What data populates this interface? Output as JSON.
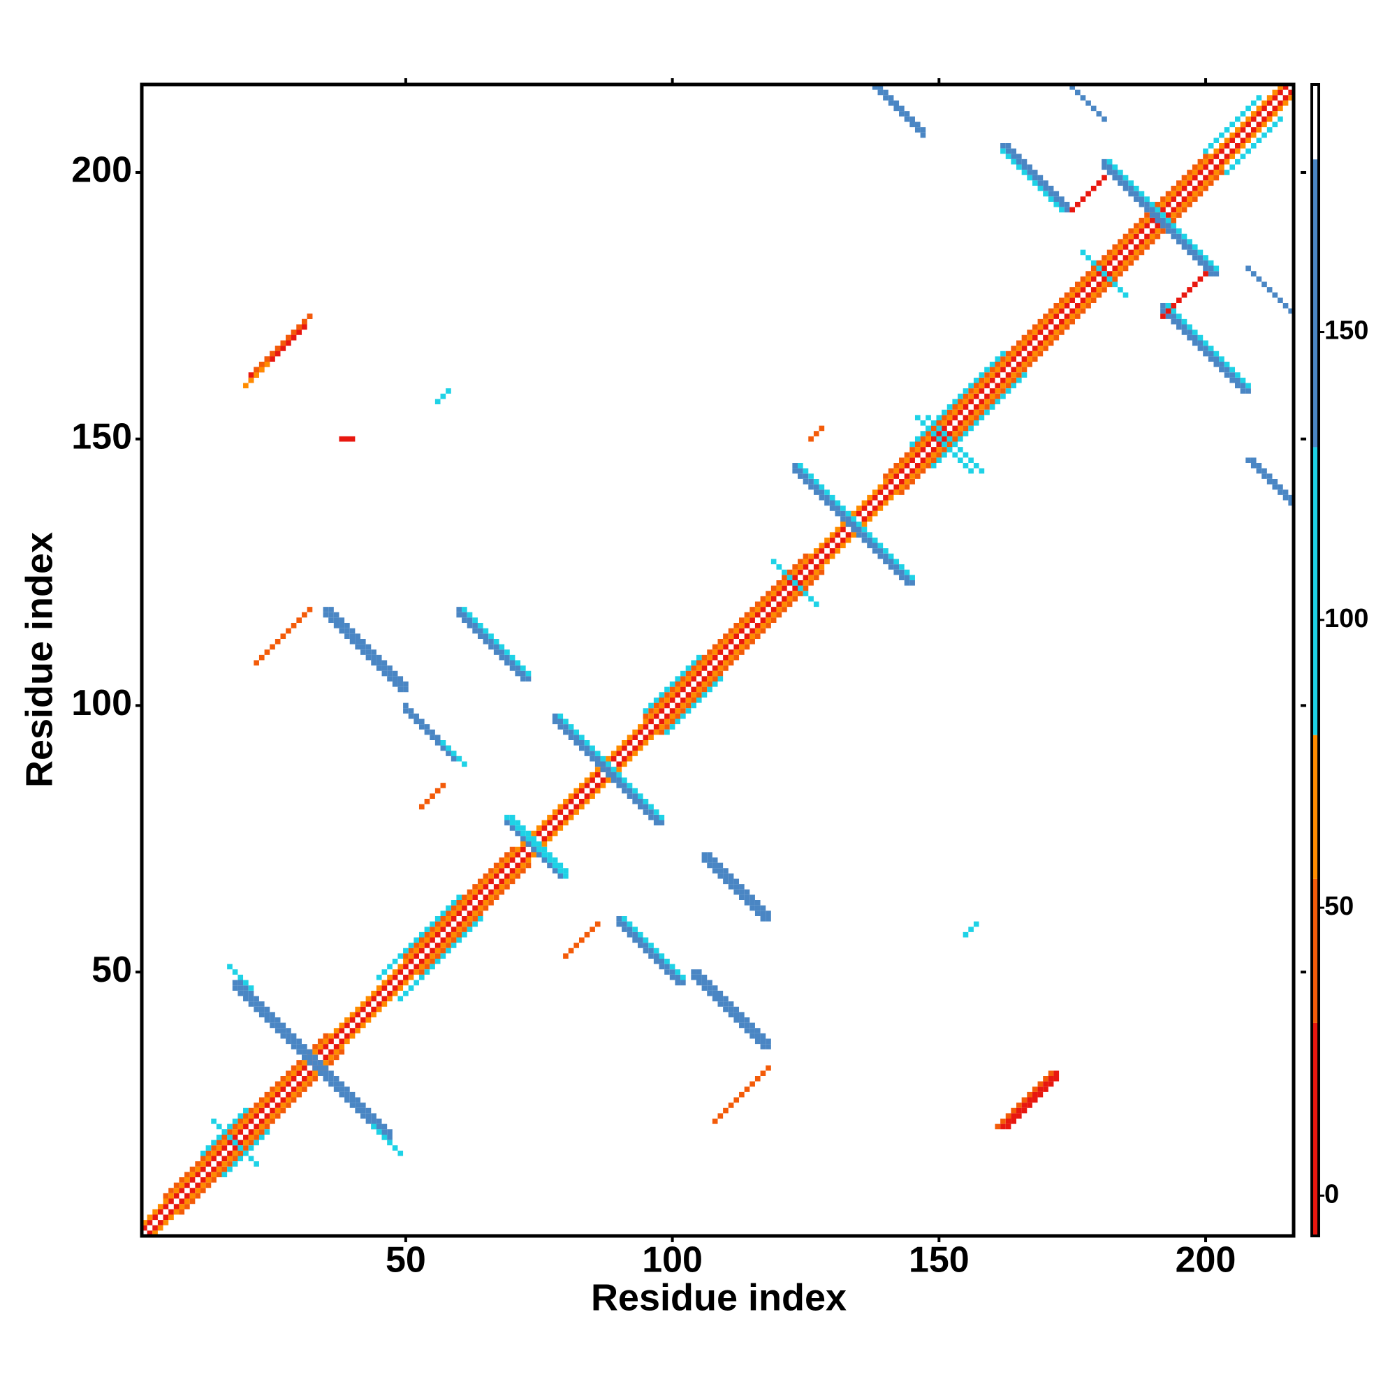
{
  "chart_data": {
    "type": "heatmap",
    "xlabel": "Residue index",
    "ylabel": "Residue index",
    "xlim": [
      0.5,
      216.5
    ],
    "ylim": [
      0.5,
      216.5
    ],
    "xticks": [
      50,
      100,
      150,
      200
    ],
    "yticks": [
      50,
      100,
      150,
      200
    ],
    "colorbar": {
      "lim": [
        -7,
        193
      ],
      "ticks": [
        0,
        50,
        100,
        150
      ],
      "bands": [
        {
          "from": -7,
          "to": 30,
          "color": "#e8170f"
        },
        {
          "from": 30,
          "to": 55,
          "color": "#f35b09"
        },
        {
          "from": 55,
          "to": 80,
          "color": "#ff8c00"
        },
        {
          "from": 80,
          "to": 130,
          "color": "#1ed2e6"
        },
        {
          "from": 130,
          "to": 180,
          "color": "#4a86c4"
        },
        {
          "from": 180,
          "to": 193,
          "color": "#ffffff"
        }
      ]
    },
    "segments": [
      {
        "x": [
          1,
          215
        ],
        "y": [
          2,
          216
        ],
        "value": 10
      },
      {
        "x": [
          2,
          216
        ],
        "y": [
          1,
          215
        ],
        "value": 10
      },
      {
        "x": [
          1,
          214
        ],
        "y": [
          3,
          216
        ],
        "value": 65
      },
      {
        "x": [
          3,
          216
        ],
        "y": [
          1,
          214
        ],
        "value": 65
      },
      {
        "x": [
          5,
          35
        ],
        "y": [
          8,
          38
        ],
        "value": 40
      },
      {
        "x": [
          8,
          38
        ],
        "y": [
          5,
          35
        ],
        "value": 40
      },
      {
        "x": [
          50,
          70
        ],
        "y": [
          53,
          73
        ],
        "value": 40
      },
      {
        "x": [
          53,
          73
        ],
        "y": [
          50,
          70
        ],
        "value": 40
      },
      {
        "x": [
          95,
          125
        ],
        "y": [
          98,
          128
        ],
        "value": 40
      },
      {
        "x": [
          98,
          128
        ],
        "y": [
          95,
          125
        ],
        "value": 40
      },
      {
        "x": [
          140,
          200
        ],
        "y": [
          143,
          203
        ],
        "value": 40
      },
      {
        "x": [
          143,
          203
        ],
        "y": [
          140,
          200
        ],
        "value": 40
      },
      {
        "x": [
          12,
          20
        ],
        "y": [
          16,
          24
        ],
        "value": 100
      },
      {
        "x": [
          16,
          24
        ],
        "y": [
          12,
          20
        ],
        "value": 100
      },
      {
        "x": [
          45,
          60
        ],
        "y": [
          49,
          64
        ],
        "value": 100
      },
      {
        "x": [
          49,
          64
        ],
        "y": [
          45,
          60
        ],
        "value": 100
      },
      {
        "x": [
          95,
          105
        ],
        "y": [
          99,
          109
        ],
        "value": 100
      },
      {
        "x": [
          99,
          109
        ],
        "y": [
          95,
          105
        ],
        "value": 100
      },
      {
        "x": [
          145,
          162
        ],
        "y": [
          149,
          166
        ],
        "value": 100
      },
      {
        "x": [
          149,
          166
        ],
        "y": [
          145,
          162
        ],
        "value": 100
      },
      {
        "x": [
          200,
          210
        ],
        "y": [
          204,
          214
        ],
        "value": 100
      },
      {
        "x": [
          204,
          214
        ],
        "y": [
          200,
          210
        ],
        "value": 100
      },
      {
        "x": [
          18,
          47
        ],
        "y": [
          48,
          19
        ],
        "value": 160
      },
      {
        "x": [
          18,
          46
        ],
        "y": [
          47,
          19
        ],
        "value": 160
      },
      {
        "x": [
          19,
          47
        ],
        "y": [
          48,
          20
        ],
        "value": 160
      },
      {
        "x": [
          17,
          21
        ],
        "y": [
          51,
          47
        ],
        "value": 100
      },
      {
        "x": [
          44,
          49
        ],
        "y": [
          21,
          16
        ],
        "value": 100
      },
      {
        "x": [
          35,
          50
        ],
        "y": [
          118,
          103
        ],
        "value": 160
      },
      {
        "x": [
          35,
          49
        ],
        "y": [
          117,
          103
        ],
        "value": 160
      },
      {
        "x": [
          36,
          50
        ],
        "y": [
          118,
          104
        ],
        "value": 160
      },
      {
        "x": [
          50,
          60
        ],
        "y": [
          100,
          90
        ],
        "value": 160
      },
      {
        "x": [
          50,
          59
        ],
        "y": [
          99,
          90
        ],
        "value": 160
      },
      {
        "x": [
          57,
          61
        ],
        "y": [
          93,
          89
        ],
        "value": 100
      },
      {
        "x": [
          60,
          73
        ],
        "y": [
          118,
          105
        ],
        "value": 160
      },
      {
        "x": [
          60,
          72
        ],
        "y": [
          117,
          105
        ],
        "value": 160
      },
      {
        "x": [
          61,
          73
        ],
        "y": [
          118,
          106
        ],
        "value": 100
      },
      {
        "x": [
          78,
          98
        ],
        "y": [
          98,
          78
        ],
        "value": 160
      },
      {
        "x": [
          78,
          97
        ],
        "y": [
          97,
          78
        ],
        "value": 160
      },
      {
        "x": [
          79,
          98
        ],
        "y": [
          98,
          79
        ],
        "value": 100
      },
      {
        "x": [
          69,
          80
        ],
        "y": [
          79,
          68
        ],
        "value": 100
      },
      {
        "x": [
          69,
          79
        ],
        "y": [
          78,
          68
        ],
        "value": 160
      },
      {
        "x": [
          70,
          80
        ],
        "y": [
          79,
          69
        ],
        "value": 100
      },
      {
        "x": [
          90,
          102
        ],
        "y": [
          60,
          48
        ],
        "value": 160
      },
      {
        "x": [
          90,
          101
        ],
        "y": [
          59,
          48
        ],
        "value": 160
      },
      {
        "x": [
          91,
          102
        ],
        "y": [
          60,
          49
        ],
        "value": 100
      },
      {
        "x": [
          104,
          118
        ],
        "y": [
          50,
          36
        ],
        "value": 160
      },
      {
        "x": [
          104,
          117
        ],
        "y": [
          49,
          36
        ],
        "value": 160
      },
      {
        "x": [
          105,
          118
        ],
        "y": [
          50,
          37
        ],
        "value": 160
      },
      {
        "x": [
          106,
          118
        ],
        "y": [
          72,
          60
        ],
        "value": 160
      },
      {
        "x": [
          106,
          117
        ],
        "y": [
          71,
          60
        ],
        "value": 160
      },
      {
        "x": [
          107,
          118
        ],
        "y": [
          72,
          61
        ],
        "value": 160
      },
      {
        "x": [
          123,
          145
        ],
        "y": [
          145,
          123
        ],
        "value": 160
      },
      {
        "x": [
          123,
          144
        ],
        "y": [
          144,
          123
        ],
        "value": 160
      },
      {
        "x": [
          124,
          145
        ],
        "y": [
          145,
          124
        ],
        "value": 100
      },
      {
        "x": [
          138,
          147
        ],
        "y": [
          216,
          207
        ],
        "value": 160
      },
      {
        "x": [
          139,
          147
        ],
        "y": [
          216,
          208
        ],
        "value": 160
      },
      {
        "x": [
          162,
          174
        ],
        "y": [
          205,
          193
        ],
        "value": 160
      },
      {
        "x": [
          162,
          173
        ],
        "y": [
          204,
          193
        ],
        "value": 100
      },
      {
        "x": [
          163,
          174
        ],
        "y": [
          205,
          194
        ],
        "value": 160
      },
      {
        "x": [
          175,
          181
        ],
        "y": [
          216,
          210
        ],
        "value": 160
      },
      {
        "x": [
          181,
          202
        ],
        "y": [
          202,
          181
        ],
        "value": 160
      },
      {
        "x": [
          181,
          201
        ],
        "y": [
          201,
          181
        ],
        "value": 160
      },
      {
        "x": [
          182,
          202
        ],
        "y": [
          202,
          182
        ],
        "value": 100
      },
      {
        "x": [
          192,
          208
        ],
        "y": [
          175,
          159
        ],
        "value": 160
      },
      {
        "x": [
          192,
          207
        ],
        "y": [
          174,
          159
        ],
        "value": 160
      },
      {
        "x": [
          193,
          208
        ],
        "y": [
          175,
          160
        ],
        "value": 100
      },
      {
        "x": [
          208,
          216
        ],
        "y": [
          182,
          174
        ],
        "value": 160
      },
      {
        "x": [
          208,
          216
        ],
        "y": [
          146,
          138
        ],
        "value": 160
      },
      {
        "x": [
          209,
          216
        ],
        "y": [
          146,
          139
        ],
        "value": 160
      },
      {
        "x": [
          21,
          32
        ],
        "y": [
          162,
          173
        ],
        "value": 10
      },
      {
        "x": [
          21,
          31
        ],
        "y": [
          161,
          171
        ],
        "value": 10
      },
      {
        "x": [
          22,
          32
        ],
        "y": [
          163,
          173
        ],
        "value": 40
      },
      {
        "x": [
          20,
          24
        ],
        "y": [
          160,
          164
        ],
        "value": 65
      },
      {
        "x": [
          162,
          172
        ],
        "y": [
          21,
          31
        ],
        "value": 10
      },
      {
        "x": [
          163,
          172
        ],
        "y": [
          21,
          30
        ],
        "value": 10
      },
      {
        "x": [
          161,
          171
        ],
        "y": [
          21,
          31
        ],
        "value": 40
      },
      {
        "x": [
          175,
          181
        ],
        "y": [
          193,
          199
        ],
        "value": 10
      },
      {
        "x": [
          192,
          200
        ],
        "y": [
          173,
          181
        ],
        "value": 10
      },
      {
        "x": [
          22,
          32
        ],
        "y": [
          108,
          118
        ],
        "value": 40
      },
      {
        "x": [
          108,
          118
        ],
        "y": [
          22,
          32
        ],
        "value": 40
      },
      {
        "x": [
          53,
          57
        ],
        "y": [
          81,
          85
        ],
        "value": 40
      },
      {
        "x": [
          80,
          86
        ],
        "y": [
          53,
          59
        ],
        "value": 40
      },
      {
        "x": [
          146,
          156
        ],
        "y": [
          154,
          144
        ],
        "value": 100
      },
      {
        "x": [
          148,
          158
        ],
        "y": [
          154,
          144
        ],
        "value": 100
      },
      {
        "x": [
          177,
          185
        ],
        "y": [
          185,
          177
        ],
        "value": 100
      },
      {
        "x": [
          119,
          127
        ],
        "y": [
          127,
          119
        ],
        "value": 100
      },
      {
        "x": [
          14,
          22
        ],
        "y": [
          22,
          14
        ],
        "value": 100
      },
      {
        "x": [
          56,
          58
        ],
        "y": [
          157,
          159
        ],
        "value": 100
      },
      {
        "x": [
          155,
          157
        ],
        "y": [
          57,
          59
        ],
        "value": 100
      },
      {
        "x": [
          126,
          128
        ],
        "y": [
          150,
          152
        ],
        "value": 40
      },
      {
        "x": [
          38,
          40
        ],
        "y": [
          150,
          150
        ],
        "value": 10
      }
    ]
  }
}
